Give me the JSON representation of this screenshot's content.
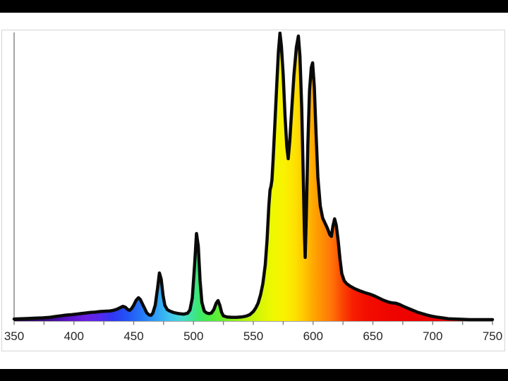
{
  "page": {
    "background_color": "#000000",
    "slide_color": "#ffffff",
    "panel_border_color": "#d6d6d6",
    "axis_color": "#808080",
    "outline_color": "#0a0a0a",
    "label_color": "#262626"
  },
  "chart_data": {
    "type": "area",
    "title": "",
    "xlabel": "",
    "ylabel": "",
    "xlim": [
      350,
      750
    ],
    "ylim": [
      0,
      1.02
    ],
    "grid": false,
    "legend": "none",
    "x_tick_labels": [
      "350",
      "400",
      "450",
      "500",
      "550",
      "600",
      "650",
      "700",
      "750"
    ],
    "x_major_tick_step": 50,
    "x_minor_tick_step": 25,
    "description_of_series": "emission spectrum, relative intensity vs wavelength (nm), area filled with visible-spectrum colors",
    "points": [
      [
        350,
        0.007
      ],
      [
        356,
        0.008
      ],
      [
        362,
        0.009
      ],
      [
        368,
        0.01
      ],
      [
        374,
        0.011
      ],
      [
        380,
        0.013
      ],
      [
        385,
        0.016
      ],
      [
        389,
        0.018
      ],
      [
        392,
        0.02
      ],
      [
        395,
        0.021
      ],
      [
        398,
        0.022
      ],
      [
        402,
        0.024
      ],
      [
        406,
        0.026
      ],
      [
        410,
        0.028
      ],
      [
        414,
        0.03
      ],
      [
        418,
        0.031
      ],
      [
        422,
        0.033
      ],
      [
        426,
        0.034
      ],
      [
        430,
        0.035
      ],
      [
        433,
        0.037
      ],
      [
        436,
        0.041
      ],
      [
        439,
        0.047
      ],
      [
        441,
        0.051
      ],
      [
        443,
        0.048
      ],
      [
        445,
        0.04
      ],
      [
        446.5,
        0.037
      ],
      [
        448,
        0.042
      ],
      [
        450,
        0.055
      ],
      [
        452,
        0.072
      ],
      [
        454,
        0.081
      ],
      [
        455.5,
        0.075
      ],
      [
        457,
        0.062
      ],
      [
        459,
        0.045
      ],
      [
        461,
        0.028
      ],
      [
        463,
        0.021
      ],
      [
        464.5,
        0.02
      ],
      [
        466,
        0.028
      ],
      [
        468,
        0.055
      ],
      [
        470,
        0.115
      ],
      [
        471.5,
        0.167
      ],
      [
        473,
        0.145
      ],
      [
        474.5,
        0.09
      ],
      [
        476,
        0.055
      ],
      [
        478,
        0.04
      ],
      [
        480,
        0.035
      ],
      [
        483,
        0.03
      ],
      [
        486,
        0.027
      ],
      [
        489,
        0.025
      ],
      [
        492,
        0.024
      ],
      [
        495,
        0.027
      ],
      [
        497,
        0.038
      ],
      [
        499,
        0.08
      ],
      [
        501,
        0.2
      ],
      [
        502.5,
        0.304
      ],
      [
        504,
        0.26
      ],
      [
        505.5,
        0.14
      ],
      [
        507,
        0.065
      ],
      [
        509,
        0.035
      ],
      [
        511,
        0.028
      ],
      [
        513,
        0.026
      ],
      [
        515,
        0.028
      ],
      [
        517,
        0.04
      ],
      [
        519,
        0.062
      ],
      [
        520.5,
        0.071
      ],
      [
        522,
        0.055
      ],
      [
        523.5,
        0.03
      ],
      [
        525,
        0.018
      ],
      [
        528,
        0.014
      ],
      [
        532,
        0.013
      ],
      [
        536,
        0.013
      ],
      [
        540,
        0.014
      ],
      [
        544,
        0.017
      ],
      [
        547,
        0.022
      ],
      [
        550,
        0.033
      ],
      [
        552,
        0.045
      ],
      [
        554,
        0.062
      ],
      [
        556,
        0.09
      ],
      [
        558,
        0.13
      ],
      [
        560,
        0.195
      ],
      [
        561.5,
        0.28
      ],
      [
        563,
        0.4
      ],
      [
        564,
        0.455
      ],
      [
        564.8,
        0.468
      ],
      [
        565.6,
        0.49
      ],
      [
        566.5,
        0.555
      ],
      [
        568,
        0.68
      ],
      [
        569.5,
        0.81
      ],
      [
        571,
        0.935
      ],
      [
        572.3,
        1.0
      ],
      [
        573.5,
        0.955
      ],
      [
        575,
        0.855
      ],
      [
        576.5,
        0.715
      ],
      [
        578,
        0.608
      ],
      [
        579.2,
        0.564
      ],
      [
        580.5,
        0.625
      ],
      [
        582,
        0.725
      ],
      [
        584,
        0.855
      ],
      [
        586,
        0.95
      ],
      [
        587.7,
        0.99
      ],
      [
        589,
        0.92
      ],
      [
        590.5,
        0.74
      ],
      [
        591.8,
        0.5
      ],
      [
        592.8,
        0.3
      ],
      [
        593.4,
        0.221
      ],
      [
        594.3,
        0.36
      ],
      [
        595.6,
        0.61
      ],
      [
        597,
        0.8
      ],
      [
        598.5,
        0.88
      ],
      [
        599.6,
        0.897
      ],
      [
        601,
        0.815
      ],
      [
        602.5,
        0.65
      ],
      [
        604,
        0.5
      ],
      [
        606,
        0.4
      ],
      [
        608,
        0.358
      ],
      [
        610,
        0.34
      ],
      [
        612,
        0.322
      ],
      [
        614,
        0.3
      ],
      [
        615.3,
        0.294
      ],
      [
        616.6,
        0.33
      ],
      [
        618,
        0.355
      ],
      [
        619.4,
        0.332
      ],
      [
        621,
        0.278
      ],
      [
        622.5,
        0.215
      ],
      [
        624,
        0.165
      ],
      [
        626,
        0.14
      ],
      [
        628,
        0.13
      ],
      [
        631,
        0.121
      ],
      [
        635,
        0.112
      ],
      [
        639,
        0.105
      ],
      [
        643,
        0.099
      ],
      [
        647,
        0.094
      ],
      [
        651,
        0.088
      ],
      [
        655,
        0.08
      ],
      [
        659,
        0.072
      ],
      [
        663,
        0.066
      ],
      [
        666,
        0.063
      ],
      [
        669,
        0.062
      ],
      [
        672,
        0.058
      ],
      [
        675,
        0.052
      ],
      [
        679,
        0.045
      ],
      [
        683,
        0.038
      ],
      [
        687,
        0.031
      ],
      [
        691,
        0.026
      ],
      [
        695,
        0.021
      ],
      [
        699,
        0.017
      ],
      [
        703,
        0.014
      ],
      [
        708,
        0.011
      ],
      [
        713,
        0.008
      ],
      [
        718,
        0.007
      ],
      [
        724,
        0.006
      ],
      [
        731,
        0.005
      ],
      [
        738,
        0.005
      ],
      [
        745,
        0.005
      ],
      [
        750,
        0.005
      ]
    ],
    "gradient_stops": [
      [
        350,
        "#1c0038"
      ],
      [
        378,
        "#3c0b8c"
      ],
      [
        395,
        "#5a14c8"
      ],
      [
        410,
        "#6b1fe4"
      ],
      [
        422,
        "#5429ee"
      ],
      [
        432,
        "#3136f2"
      ],
      [
        443,
        "#2350f6"
      ],
      [
        455,
        "#2472f7"
      ],
      [
        468,
        "#2f9ef6"
      ],
      [
        480,
        "#3fc3f0"
      ],
      [
        490,
        "#46d9d2"
      ],
      [
        498,
        "#3fe39f"
      ],
      [
        505,
        "#3ce96a"
      ],
      [
        515,
        "#4fed3f"
      ],
      [
        528,
        "#78ef24"
      ],
      [
        542,
        "#abf312"
      ],
      [
        555,
        "#d6f606"
      ],
      [
        566,
        "#eef801"
      ],
      [
        575,
        "#f9f300"
      ],
      [
        584,
        "#fde300"
      ],
      [
        592,
        "#ffc900"
      ],
      [
        600,
        "#ffa800"
      ],
      [
        608,
        "#ff8d04"
      ],
      [
        616,
        "#ff7208"
      ],
      [
        624,
        "#fb4703"
      ],
      [
        633,
        "#f72000"
      ],
      [
        645,
        "#f30d00"
      ],
      [
        670,
        "#ee0300"
      ],
      [
        750,
        "#e50000"
      ]
    ]
  }
}
